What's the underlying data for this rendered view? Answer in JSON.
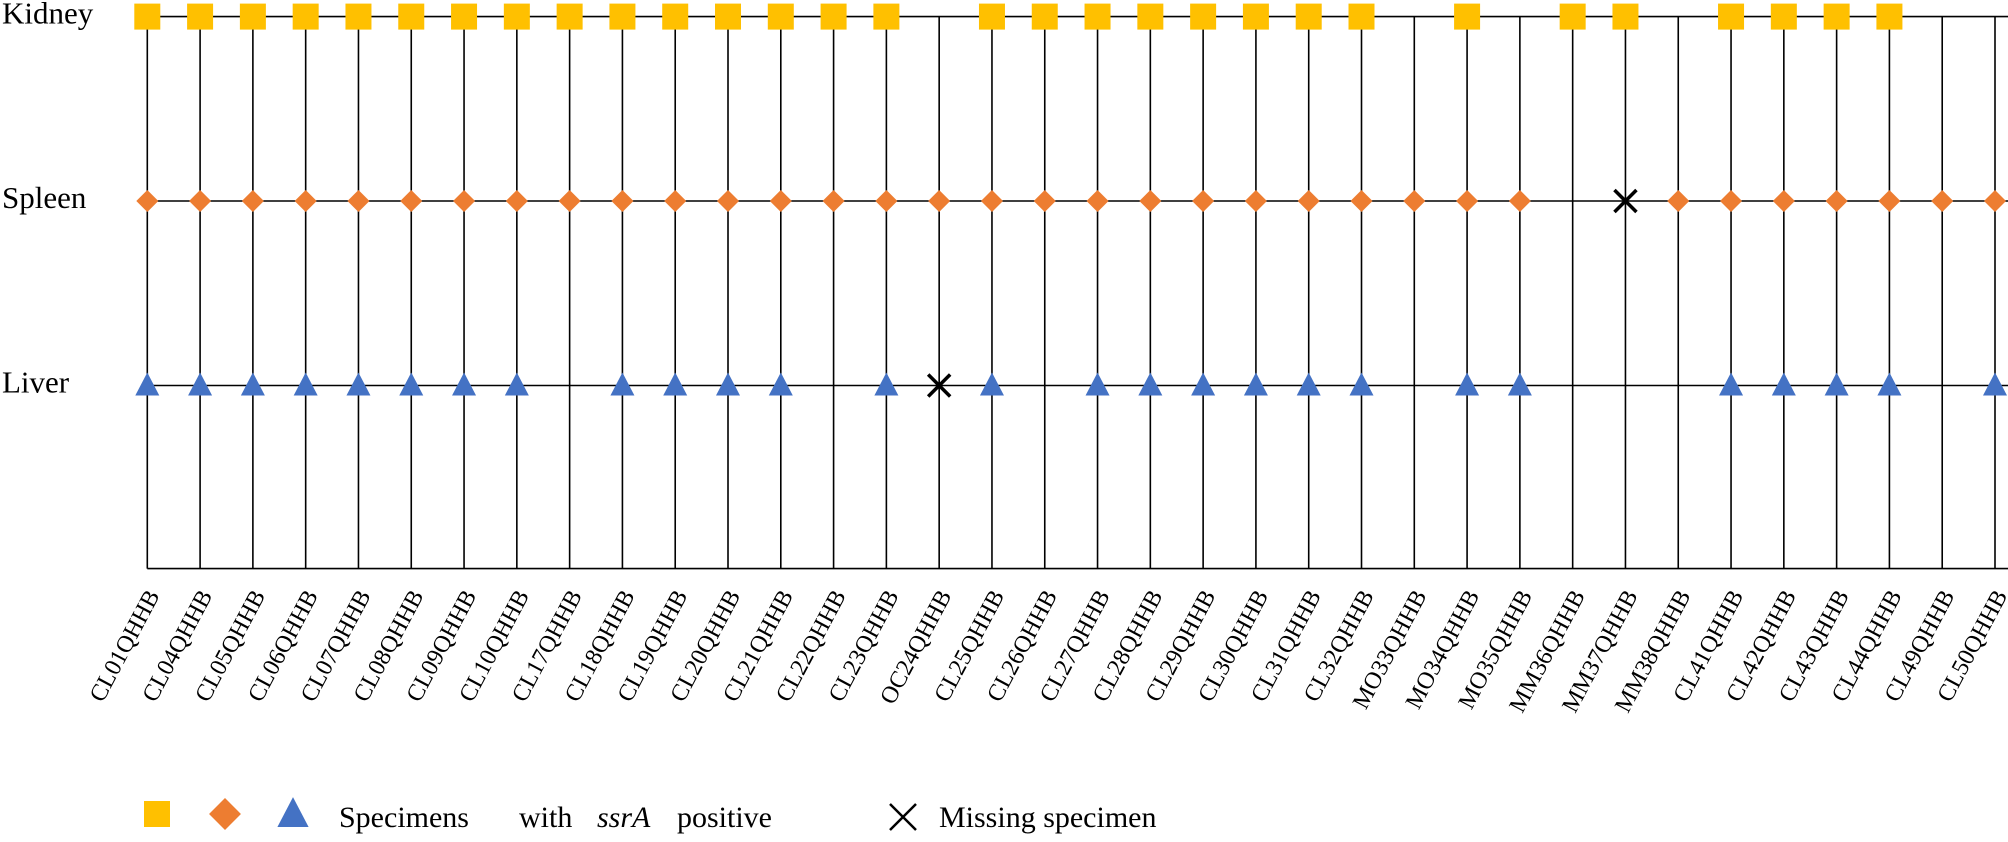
{
  "chart_data": {
    "type": "presence-matrix",
    "categories": [
      "CL01QHHB",
      "CL04QHHB",
      "CL05QHHB",
      "CL06QHHB",
      "CL07QHHB",
      "CL08QHHB",
      "CL09QHHB",
      "CL10QHHB",
      "CL17QHHB",
      "CL18QHHB",
      "CL19QHHB",
      "CL20QHHB",
      "CL21QHHB",
      "CL22QHHB",
      "CL23QHHB",
      "OC24QHHB",
      "CL25QHHB",
      "CL26QHHB",
      "CL27QHHB",
      "CL28QHHB",
      "CL29QHHB",
      "CL30QHHB",
      "CL31QHHB",
      "CL32QHHB",
      "MO33QHHB",
      "MO34QHHB",
      "MO35QHHB",
      "MM36QHHB",
      "MM37QHHB",
      "MM38QHHB",
      "CL41QHHB",
      "CL42QHHB",
      "CL43QHHB",
      "CL44QHHB",
      "CL49QHHB",
      "CL50QHHB"
    ],
    "series": [
      {
        "name": "Kidney",
        "color": "#ffc000",
        "marker": "square",
        "values": [
          1,
          1,
          1,
          1,
          1,
          1,
          1,
          1,
          1,
          1,
          1,
          1,
          1,
          1,
          1,
          0,
          1,
          1,
          1,
          1,
          1,
          1,
          1,
          1,
          0,
          1,
          0,
          1,
          1,
          0,
          1,
          1,
          1,
          1,
          0,
          0
        ]
      },
      {
        "name": "Spleen",
        "color": "#ed7d31",
        "marker": "diamond",
        "values": [
          1,
          1,
          1,
          1,
          1,
          1,
          1,
          1,
          1,
          1,
          1,
          1,
          1,
          1,
          1,
          1,
          1,
          1,
          1,
          1,
          1,
          1,
          1,
          1,
          1,
          1,
          1,
          0,
          null,
          1,
          1,
          1,
          1,
          1,
          1,
          1
        ]
      },
      {
        "name": "Liver",
        "color": "#4472c4",
        "marker": "triangle",
        "values": [
          1,
          1,
          1,
          1,
          1,
          1,
          1,
          1,
          0,
          1,
          1,
          1,
          1,
          0,
          1,
          null,
          1,
          0,
          1,
          1,
          1,
          1,
          1,
          1,
          0,
          1,
          1,
          0,
          0,
          0,
          1,
          1,
          1,
          1,
          0,
          1
        ]
      }
    ],
    "legend": {
      "positive": [
        "Specimens",
        "with",
        "ssrA",
        "positive"
      ],
      "missing": "Missing specimen"
    }
  }
}
